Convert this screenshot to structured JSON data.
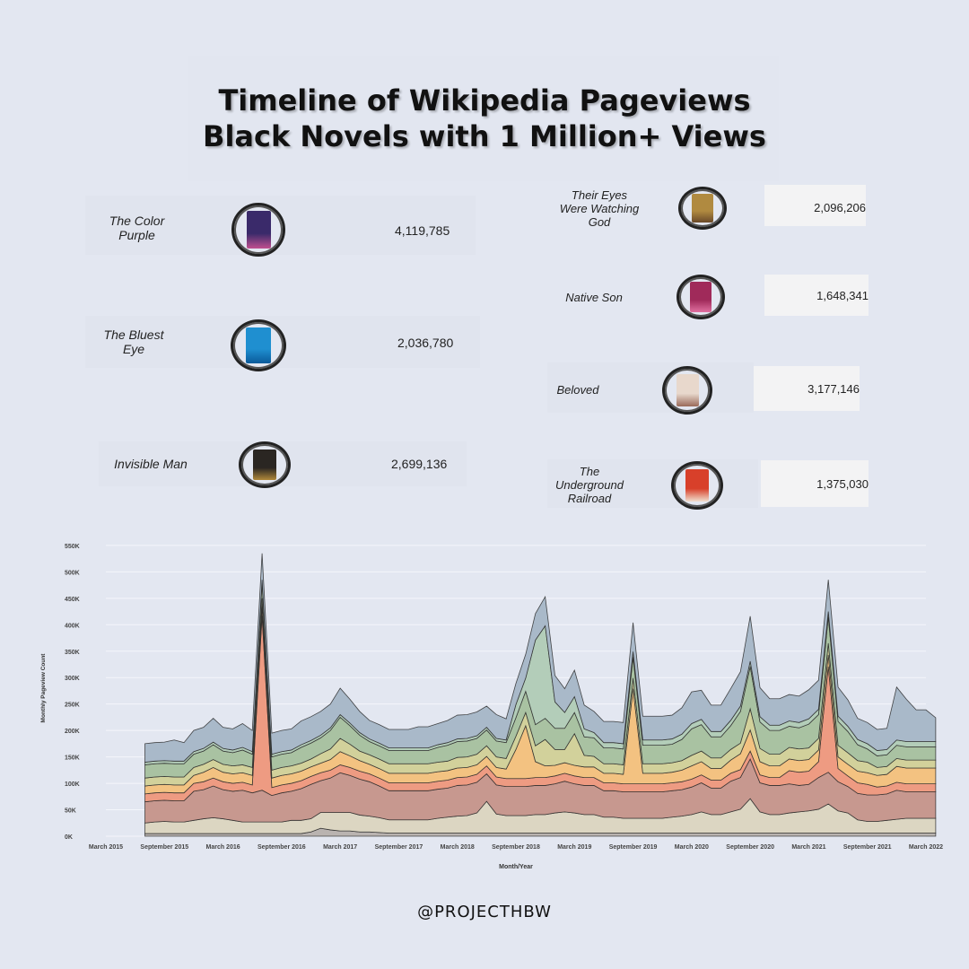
{
  "title_line1": "Timeline of Wikipedia Pageviews",
  "title_line2": "Black Novels with 1 Million+ Views",
  "books": [
    {
      "name": "The Color Purple",
      "views": "4,119,785",
      "cover_color": "#3a2a6a",
      "cover_accent": "#c05090"
    },
    {
      "name": "The Bluest Eye",
      "views": "2,036,780",
      "cover_color": "#1f8fd0",
      "cover_accent": "#0a5a9a"
    },
    {
      "name": "Invisible Man",
      "views": "2,699,136",
      "cover_color": "#2a2622",
      "cover_accent": "#b0883a"
    },
    {
      "name": "Their Eyes Were Watching God",
      "views": "2,096,206",
      "cover_color": "#b08a40",
      "cover_accent": "#6a4a2a"
    },
    {
      "name": "Native Son",
      "views": "1,648,341",
      "cover_color": "#a02a5a",
      "cover_accent": "#e070a0"
    },
    {
      "name": "Beloved",
      "views": "3,177,146",
      "cover_color": "#e8d8cc",
      "cover_accent": "#9a6a5a"
    },
    {
      "name": "The Underground Railroad",
      "views": "1,375,030",
      "cover_color": "#d8402a",
      "cover_accent": "#f0e0d0"
    }
  ],
  "handle": "@PROJECTHBW",
  "chart_data": {
    "type": "area",
    "stacked": true,
    "xlabel": "Month/Year",
    "ylabel": "Monthly Pageview Count",
    "ylim": [
      0,
      560000
    ],
    "y_ticks": [
      0,
      50000,
      100000,
      150000,
      200000,
      250000,
      300000,
      350000,
      400000,
      450000,
      500000,
      550000
    ],
    "y_tick_labels": [
      "0K",
      "50K",
      "100K",
      "150K",
      "200K",
      "250K",
      "300K",
      "350K",
      "400K",
      "450K",
      "500K",
      "550K"
    ],
    "x_tick_labels": [
      "March 2015",
      "September 2015",
      "March 2016",
      "September 2016",
      "March 2017",
      "September 2017",
      "March 2018",
      "September 2018",
      "March 2019",
      "September 2019",
      "March 2020",
      "September 2020",
      "March 2021",
      "September 2021",
      "March 2022"
    ],
    "grid": "horizontal",
    "colors": {
      "color_purple": "#c7988f",
      "underground_railroad": "#ee9b82",
      "bluest_eye": "#f3c281",
      "native_son": "#d2d19b",
      "their_eyes": "#a9c2a2",
      "beloved": "#b3cdb9",
      "invisible_man": "#a9b9c9",
      "base_gray": "#b9b3b0",
      "base_beige": "#dcd6c2",
      "outline": "#2a2a2a"
    },
    "x": [
      "2015-07",
      "2015-08",
      "2015-09",
      "2015-10",
      "2015-11",
      "2015-12",
      "2016-01",
      "2016-02",
      "2016-03",
      "2016-04",
      "2016-05",
      "2016-06",
      "2016-07",
      "2016-08",
      "2016-09",
      "2016-10",
      "2016-11",
      "2016-12",
      "2017-01",
      "2017-02",
      "2017-03",
      "2017-04",
      "2017-05",
      "2017-06",
      "2017-07",
      "2017-08",
      "2017-09",
      "2017-10",
      "2017-11",
      "2017-12",
      "2018-01",
      "2018-02",
      "2018-03",
      "2018-04",
      "2018-05",
      "2018-06",
      "2018-07",
      "2018-08",
      "2018-09",
      "2018-10",
      "2018-11",
      "2018-12",
      "2019-01",
      "2019-02",
      "2019-03",
      "2019-04",
      "2019-05",
      "2019-06",
      "2019-07",
      "2019-08",
      "2019-09",
      "2019-10",
      "2019-11",
      "2019-12",
      "2020-01",
      "2020-02",
      "2020-03",
      "2020-04",
      "2020-05",
      "2020-06",
      "2020-07",
      "2020-08",
      "2020-09",
      "2020-10",
      "2020-11",
      "2020-12",
      "2021-01",
      "2021-02",
      "2021-03",
      "2021-04",
      "2021-05",
      "2021-06",
      "2021-07",
      "2021-08",
      "2021-09",
      "2021-10",
      "2021-11",
      "2021-12",
      "2022-01",
      "2022-02",
      "2022-03",
      "2022-04"
    ],
    "series": [
      {
        "key": "base_gray",
        "values": [
          5000,
          5000,
          5000,
          5000,
          5000,
          5000,
          5000,
          5000,
          5000,
          5000,
          5000,
          5000,
          5000,
          5000,
          5000,
          5000,
          5000,
          8000,
          15000,
          12000,
          10000,
          10000,
          8000,
          8000,
          7000,
          6000,
          6000,
          6000,
          6000,
          6000,
          6000,
          6000,
          6000,
          6000,
          6000,
          6000,
          6000,
          6000,
          6000,
          6000,
          6000,
          6000,
          6000,
          6000,
          6000,
          6000,
          6000,
          6000,
          6000,
          6000,
          6000,
          6000,
          6000,
          6000,
          6000,
          6000,
          6000,
          6000,
          6000,
          6000,
          6000,
          6000,
          6000,
          6000,
          6000,
          6000,
          6000,
          6000,
          6000,
          6000,
          6000,
          6000,
          6000,
          6000,
          6000,
          6000,
          6000,
          6000,
          6000,
          6000,
          6000,
          6000
        ]
      },
      {
        "key": "base_beige",
        "values": [
          20000,
          22000,
          23000,
          22000,
          22000,
          25000,
          28000,
          30000,
          28000,
          25000,
          22000,
          22000,
          22000,
          22000,
          22000,
          25000,
          25000,
          25000,
          30000,
          33000,
          35000,
          35000,
          32000,
          30000,
          28000,
          25000,
          25000,
          25000,
          25000,
          25000,
          28000,
          30000,
          32000,
          33000,
          38000,
          60000,
          36000,
          33000,
          33000,
          33000,
          35000,
          35000,
          38000,
          40000,
          38000,
          35000,
          35000,
          30000,
          30000,
          28000,
          28000,
          28000,
          28000,
          28000,
          30000,
          32000,
          35000,
          40000,
          35000,
          35000,
          40000,
          45000,
          65000,
          40000,
          35000,
          35000,
          38000,
          40000,
          42000,
          45000,
          55000,
          42000,
          38000,
          25000,
          22000,
          22000,
          24000,
          26000,
          28000,
          28000,
          28000,
          28000
        ]
      },
      {
        "key": "color_purple",
        "values": [
          40000,
          40000,
          40000,
          40000,
          40000,
          55000,
          55000,
          60000,
          55000,
          55000,
          60000,
          55000,
          60000,
          50000,
          55000,
          55000,
          60000,
          65000,
          60000,
          65000,
          75000,
          70000,
          68000,
          65000,
          60000,
          55000,
          55000,
          55000,
          55000,
          55000,
          55000,
          55000,
          58000,
          58000,
          58000,
          52000,
          55000,
          55000,
          55000,
          55000,
          55000,
          55000,
          55000,
          58000,
          55000,
          55000,
          55000,
          50000,
          50000,
          50000,
          50000,
          50000,
          50000,
          50000,
          50000,
          50000,
          52000,
          55000,
          50000,
          50000,
          58000,
          60000,
          75000,
          55000,
          55000,
          55000,
          55000,
          50000,
          50000,
          60000,
          60000,
          55000,
          50000,
          50000,
          50000,
          50000,
          50000,
          55000,
          50000,
          50000,
          50000,
          50000
        ]
      },
      {
        "key": "underground_railroad",
        "values": [
          15000,
          15000,
          15000,
          15000,
          15000,
          15000,
          15000,
          15000,
          15000,
          15000,
          15000,
          15000,
          330000,
          15000,
          15000,
          15000,
          15000,
          15000,
          15000,
          15000,
          15000,
          15000,
          15000,
          15000,
          15000,
          15000,
          15000,
          15000,
          15000,
          15000,
          15000,
          15000,
          15000,
          15000,
          15000,
          15000,
          15000,
          15000,
          15000,
          15000,
          15000,
          15000,
          15000,
          15000,
          15000,
          15000,
          15000,
          15000,
          15000,
          15000,
          15000,
          15000,
          15000,
          15000,
          15000,
          15000,
          15000,
          15000,
          15000,
          15000,
          15000,
          15000,
          15000,
          15000,
          15000,
          15000,
          25000,
          25000,
          25000,
          30000,
          200000,
          25000,
          20000,
          20000,
          20000,
          15000,
          15000,
          15000,
          15000,
          15000,
          15000,
          15000
        ]
      },
      {
        "key": "bluest_eye",
        "values": [
          15000,
          15000,
          15000,
          15000,
          15000,
          15000,
          18000,
          20000,
          18000,
          18000,
          18000,
          18000,
          18000,
          18000,
          18000,
          18000,
          18000,
          18000,
          18000,
          20000,
          25000,
          22000,
          20000,
          18000,
          18000,
          18000,
          18000,
          18000,
          18000,
          18000,
          18000,
          18000,
          18000,
          18000,
          18000,
          18000,
          18000,
          18000,
          55000,
          100000,
          30000,
          22000,
          20000,
          20000,
          20000,
          20000,
          20000,
          18000,
          18000,
          18000,
          180000,
          20000,
          20000,
          20000,
          20000,
          22000,
          25000,
          25000,
          22000,
          22000,
          25000,
          30000,
          40000,
          25000,
          22000,
          22000,
          22000,
          22000,
          22000,
          22000,
          22000,
          22000,
          22000,
          22000,
          22000,
          22000,
          22000,
          30000,
          30000,
          30000,
          30000,
          30000
        ]
      },
      {
        "key": "native_son",
        "values": [
          15000,
          15000,
          15000,
          15000,
          15000,
          15000,
          15000,
          15000,
          15000,
          15000,
          15000,
          15000,
          15000,
          15000,
          15000,
          15000,
          15000,
          15000,
          18000,
          20000,
          25000,
          22000,
          18000,
          18000,
          18000,
          18000,
          18000,
          18000,
          18000,
          18000,
          18000,
          18000,
          20000,
          20000,
          20000,
          20000,
          20000,
          20000,
          25000,
          25000,
          30000,
          50000,
          30000,
          25000,
          60000,
          22000,
          20000,
          18000,
          18000,
          18000,
          20000,
          18000,
          18000,
          18000,
          18000,
          18000,
          20000,
          20000,
          20000,
          20000,
          20000,
          20000,
          40000,
          25000,
          22000,
          22000,
          22000,
          22000,
          22000,
          22000,
          22000,
          22000,
          22000,
          20000,
          20000,
          15000,
          15000,
          15000,
          15000,
          15000,
          15000,
          15000
        ]
      },
      {
        "key": "their_eyes",
        "values": [
          25000,
          25000,
          25000,
          25000,
          25000,
          25000,
          25000,
          28000,
          25000,
          25000,
          28000,
          25000,
          30000,
          25000,
          25000,
          25000,
          30000,
          30000,
          30000,
          35000,
          40000,
          35000,
          30000,
          25000,
          25000,
          25000,
          25000,
          25000,
          25000,
          25000,
          28000,
          30000,
          30000,
          30000,
          30000,
          30000,
          30000,
          30000,
          35000,
          40000,
          40000,
          40000,
          40000,
          40000,
          40000,
          35000,
          35000,
          30000,
          30000,
          30000,
          40000,
          35000,
          35000,
          35000,
          35000,
          40000,
          50000,
          50000,
          40000,
          40000,
          45000,
          60000,
          80000,
          50000,
          45000,
          45000,
          40000,
          40000,
          45000,
          45000,
          50000,
          45000,
          40000,
          30000,
          25000,
          22000,
          22000,
          25000,
          25000,
          25000,
          25000,
          25000
        ]
      },
      {
        "key": "beloved",
        "values": [
          5000,
          5000,
          5000,
          5000,
          5000,
          5000,
          5000,
          5000,
          5000,
          5000,
          5000,
          5000,
          5000,
          5000,
          5000,
          5000,
          5000,
          5000,
          5000,
          5000,
          5000,
          5000,
          5000,
          5000,
          5000,
          5000,
          5000,
          5000,
          5000,
          5000,
          5000,
          5000,
          5000,
          5000,
          5000,
          5000,
          5000,
          5000,
          25000,
          25000,
          160000,
          175000,
          50000,
          30000,
          30000,
          15000,
          10000,
          10000,
          10000,
          10000,
          10000,
          10000,
          10000,
          10000,
          10000,
          10000,
          10000,
          10000,
          10000,
          10000,
          10000,
          10000,
          10000,
          10000,
          10000,
          10000,
          10000,
          10000,
          10000,
          10000,
          10000,
          10000,
          10000,
          10000,
          10000,
          10000,
          10000,
          10000,
          10000,
          10000,
          10000,
          10000
        ]
      },
      {
        "key": "invisible_man",
        "values": [
          35000,
          35000,
          35000,
          40000,
          35000,
          40000,
          40000,
          45000,
          40000,
          40000,
          45000,
          40000,
          50000,
          40000,
          40000,
          40000,
          45000,
          45000,
          45000,
          45000,
          50000,
          45000,
          40000,
          35000,
          35000,
          35000,
          35000,
          35000,
          40000,
          40000,
          40000,
          42000,
          45000,
          45000,
          45000,
          40000,
          45000,
          40000,
          40000,
          45000,
          50000,
          55000,
          50000,
          45000,
          50000,
          45000,
          40000,
          40000,
          40000,
          40000,
          55000,
          45000,
          45000,
          45000,
          45000,
          50000,
          60000,
          55000,
          50000,
          50000,
          60000,
          65000,
          85000,
          55000,
          50000,
          50000,
          50000,
          50000,
          55000,
          55000,
          60000,
          55000,
          50000,
          40000,
          40000,
          40000,
          40000,
          100000,
          80000,
          60000,
          60000,
          45000
        ]
      }
    ]
  }
}
